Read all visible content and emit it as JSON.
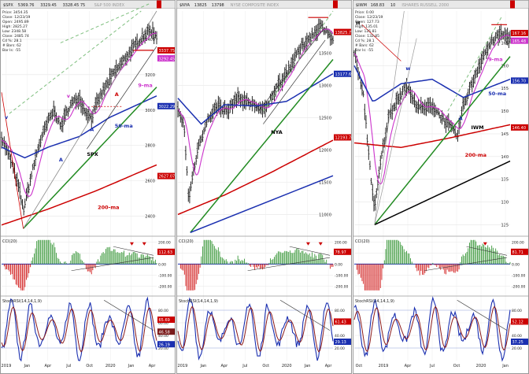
{
  "chart_data": [
    {
      "type": "line",
      "chart_style": "ohlc-bars",
      "header": [
        "$SPX",
        "5369.76",
        "3329.45",
        "3328.45 75"
      ],
      "title": "S&P 500 INDEX",
      "info": [
        "Price: 3454.35",
        "Close: 12/23/19",
        "Open: 2495.89",
        "High: 2825.27",
        "Low: 2348.58",
        "Close: 2485.74",
        "Cd %: 28.1",
        "# Bars: 62",
        "Bar Is: -55"
      ],
      "ylim": [
        2300,
        3560
      ],
      "yticks": [
        2400,
        2600,
        2800,
        3000,
        3200,
        3400
      ],
      "xticks": [
        "2019",
        "Jan",
        "Apr",
        "Jul",
        "Oct",
        "2020",
        "Jan",
        "Apr"
      ],
      "value_tags": [
        {
          "value": 3337.75,
          "label": "3337.75",
          "color": "#cc0000"
        },
        {
          "value": 3292.45,
          "label": "3292.45",
          "color": "#cc33cc"
        },
        {
          "value": 3022.29,
          "label": "3022.29",
          "color": "#1a2fb0"
        },
        {
          "value": 2627.07,
          "label": "2627.07",
          "color": "#cc0000"
        }
      ],
      "annotations": [
        {
          "text": "SPX",
          "color": "#000000",
          "x": 0.55,
          "y": 2740
        },
        {
          "text": "50-ma",
          "color": "#1a2fb0",
          "x": 0.73,
          "y": 2900
        },
        {
          "text": "200-ma",
          "color": "#cc0000",
          "x": 0.62,
          "y": 2440
        },
        {
          "text": "9-ma",
          "color": "#cc33cc",
          "x": 0.88,
          "y": 3130
        },
        {
          "text": "v",
          "color": "#1a2fb0",
          "x": 0.02,
          "y": 2950
        },
        {
          "text": "v",
          "color": "#cc33cc",
          "x": 0.42,
          "y": 3070
        },
        {
          "text": "A",
          "color": "#1a2fb0",
          "x": 0.37,
          "y": 2710
        },
        {
          "text": "A",
          "color": "#1a2fb0",
          "x": 0.57,
          "y": 2880
        },
        {
          "text": "A",
          "color": "#cc0000",
          "x": 0.73,
          "y": 3080
        }
      ],
      "cci": {
        "label": "CCI(20)",
        "ylim": [
          -270,
          240
        ],
        "yticks": [
          200,
          100,
          0,
          -100,
          -200
        ],
        "value_tag": "112.63",
        "arrows": 2
      },
      "stochrsi": {
        "label": "StochRSI(14,14,1,9)",
        "ylim": [
          0,
          100
        ],
        "yticks": [
          80,
          60,
          40,
          20
        ],
        "value_tags": [
          "65.69",
          "46.58",
          "26.19"
        ]
      }
    },
    {
      "type": "line",
      "chart_style": "ohlc-bars",
      "header": [
        "$NYA",
        "13825",
        "13798"
      ],
      "title": "NYSE COMPOSITE INDEX",
      "ylim": [
        10700,
        14150
      ],
      "yticks": [
        11000,
        11500,
        12000,
        12500,
        13000,
        13500
      ],
      "xticks": [
        "2019",
        "Jan",
        "Apr",
        "Jul",
        "Oct",
        "2020",
        "Jan",
        "Apr"
      ],
      "value_tags": [
        {
          "value": 13825.775,
          "label": "13825.775",
          "color": "#cc0000"
        },
        {
          "value": 13177.69,
          "label": "13177.690",
          "color": "#1a2fb0"
        },
        {
          "value": 12193.74,
          "label": "12193.74",
          "color": "#cc0000"
        }
      ],
      "annotations": [
        {
          "text": "NYA",
          "color": "#000000",
          "x": 0.6,
          "y": 12250
        }
      ],
      "cci": {
        "label": "CCI(20)",
        "ylim": [
          -270,
          240
        ],
        "yticks": [
          200,
          100,
          0,
          -100,
          -200
        ],
        "value_tag": "78.97",
        "arrows": 2
      },
      "stochrsi": {
        "label": "StochRSI(14,14,1,9)",
        "ylim": [
          0,
          100
        ],
        "yticks": [
          80,
          60,
          40,
          20
        ],
        "value_tags": [
          "61.43",
          "29.13"
        ]
      }
    },
    {
      "type": "line",
      "chart_style": "ohlc-bars",
      "header": [
        "$IWM",
        "168.83",
        "10"
      ],
      "title": "ISHARES RUSSELL 2000",
      "info": [
        "Price: 0.00",
        "Close: 12/23/19",
        "Open: 127.73",
        "High: 135.01",
        "Low: 125.81",
        "Close: 132.85",
        "Cd %: 28.1",
        "# Bars: 62",
        "Bar Is: -55"
      ],
      "ylim": [
        123,
        172
      ],
      "yticks": [
        125,
        130,
        135,
        140,
        145,
        150,
        155,
        160,
        165
      ],
      "xticks": [
        "Oct",
        "2019",
        "Apr",
        "Jul",
        "Oct",
        "2020",
        "Jan"
      ],
      "value_tags": [
        {
          "value": 167.16,
          "label": "167.16",
          "color": "#cc0000"
        },
        {
          "value": 165.48,
          "label": "165.48",
          "color": "#cc33cc"
        },
        {
          "value": 156.7,
          "label": "156.70",
          "color": "#1a2fb0"
        },
        {
          "value": 146.4,
          "label": "146.40",
          "color": "#cc0000"
        }
      ],
      "annotations": [
        {
          "text": "IWM",
          "color": "#000000",
          "x": 0.75,
          "y": 146
        },
        {
          "text": "200-ma",
          "color": "#cc0000",
          "x": 0.71,
          "y": 140
        },
        {
          "text": "50-ma",
          "color": "#1a2fb0",
          "x": 0.86,
          "y": 153.5
        },
        {
          "text": "9-ma",
          "color": "#cc33cc",
          "x": 0.86,
          "y": 161
        },
        {
          "text": "H",
          "color": "#000000",
          "x": 0.01,
          "y": 169
        },
        {
          "text": "w",
          "color": "#1a2fb0",
          "x": 0.33,
          "y": 159
        },
        {
          "text": "A",
          "color": "#1a2fb0",
          "x": 0.67,
          "y": 148
        }
      ],
      "cci": {
        "label": "CCI(20)",
        "ylim": [
          -270,
          240
        ],
        "yticks": [
          200,
          100,
          0,
          -100,
          -200
        ],
        "value_tag": "81.71",
        "arrows": 1
      },
      "stochrsi": {
        "label": "StochRSI(14,14,1,9)",
        "ylim": [
          0,
          100
        ],
        "yticks": [
          80,
          60,
          40,
          20
        ],
        "value_tags": [
          "52.12",
          "37.25"
        ]
      }
    }
  ]
}
